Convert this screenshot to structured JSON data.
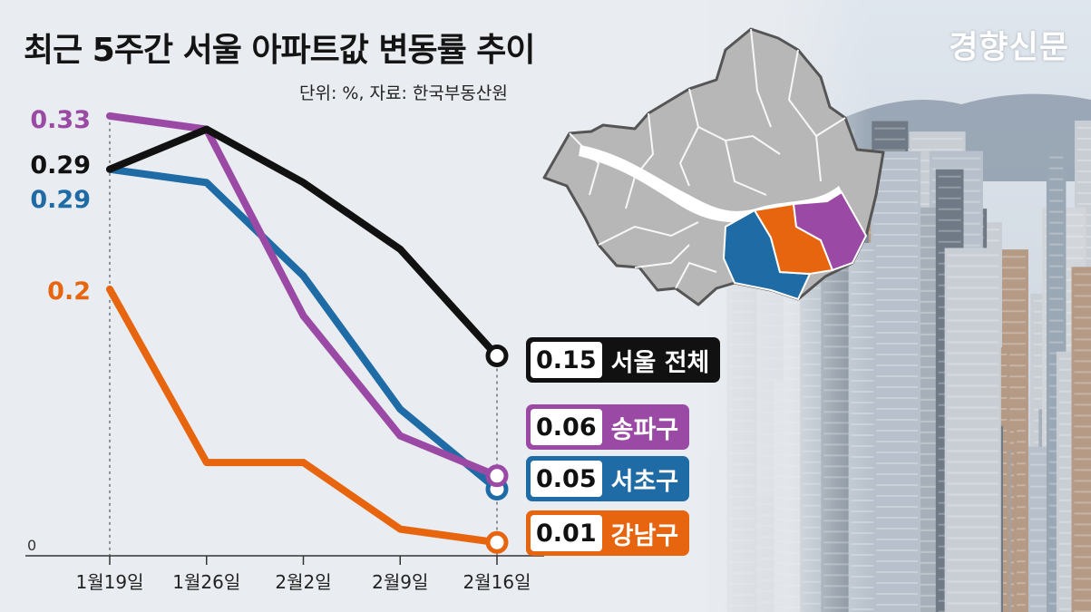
{
  "title": "최근 5주간 서울 아파트값 변동률 추이",
  "unit_source": "단위: %, 자료: 한국부동산원",
  "publisher": "경향신문",
  "chart_data": {
    "type": "line",
    "title": "최근 5주간 서울 아파트값 변동률 추이",
    "unit": "%",
    "source": "한국부동산원",
    "categories": [
      "1월19일",
      "1월26일",
      "2월2일",
      "2월9일",
      "2월16일"
    ],
    "ylim": [
      0,
      0.36
    ],
    "zero_label": "0",
    "series": [
      {
        "name": "서울 전체",
        "color": "#111111",
        "values": [
          0.29,
          0.32,
          0.28,
          0.23,
          0.15
        ],
        "start_label": "0.29",
        "end_label": "0.15"
      },
      {
        "name": "송파구",
        "color": "#9a4aa5",
        "values": [
          0.33,
          0.32,
          0.18,
          0.09,
          0.06
        ],
        "start_label": "0.33",
        "end_label": "0.06"
      },
      {
        "name": "서초구",
        "color": "#1f6ba6",
        "values": [
          0.29,
          0.28,
          0.21,
          0.11,
          0.05
        ],
        "start_label": "0.29",
        "end_label": "0.05"
      },
      {
        "name": "강남구",
        "color": "#e8650f",
        "values": [
          0.2,
          0.07,
          0.07,
          0.02,
          0.01
        ],
        "start_label": "0.2",
        "end_label": "0.01"
      }
    ]
  },
  "map": {
    "district_color": "#b7b7b7",
    "river_color": "#ffffff",
    "highlights": [
      {
        "name": "서초구",
        "color": "#1f6ba6"
      },
      {
        "name": "강남구",
        "color": "#e8650f"
      },
      {
        "name": "송파구",
        "color": "#9a4aa5"
      }
    ]
  }
}
